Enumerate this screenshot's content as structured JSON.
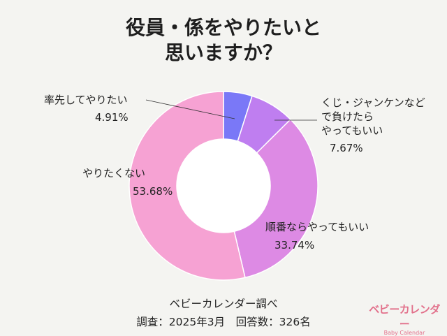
{
  "title_lines": [
    "役員・係をやりたいと",
    "思いますか？"
  ],
  "chart_data": {
    "type": "pie",
    "title": "役員・係をやりたいと思いますか？",
    "slices": [
      {
        "name_lines": [
          "率先してやりたい"
        ],
        "label": "率先してやりたい",
        "value": 4.91,
        "value_label": "4.91%",
        "color": "#7a78f7"
      },
      {
        "name_lines": [
          "くじ・ジャンケンなど",
          "で負けたら",
          "やってもいい"
        ],
        "label": "くじ・ジャンケンなどで負けたらやってもいい",
        "value": 7.67,
        "value_label": "7.67%",
        "color": "#bf7ef0"
      },
      {
        "name_lines": [
          "順番ならやってもいい"
        ],
        "label": "順番ならやってもいい",
        "value": 33.74,
        "value_label": "33.74%",
        "color": "#dd8ae4"
      },
      {
        "name_lines": [
          "やりたくない"
        ],
        "label": "やりたくない",
        "value": 53.68,
        "value_label": "53.68%",
        "color": "#f6a2d3"
      }
    ],
    "donut": true,
    "legend": "none"
  },
  "footer": {
    "source": "ベビーカレンダー調べ",
    "survey": "調査：2025年3月　回答数：326名"
  },
  "brand": {
    "logo_text": "ベビーカレンダー",
    "sub_text": "Baby Calendar"
  }
}
